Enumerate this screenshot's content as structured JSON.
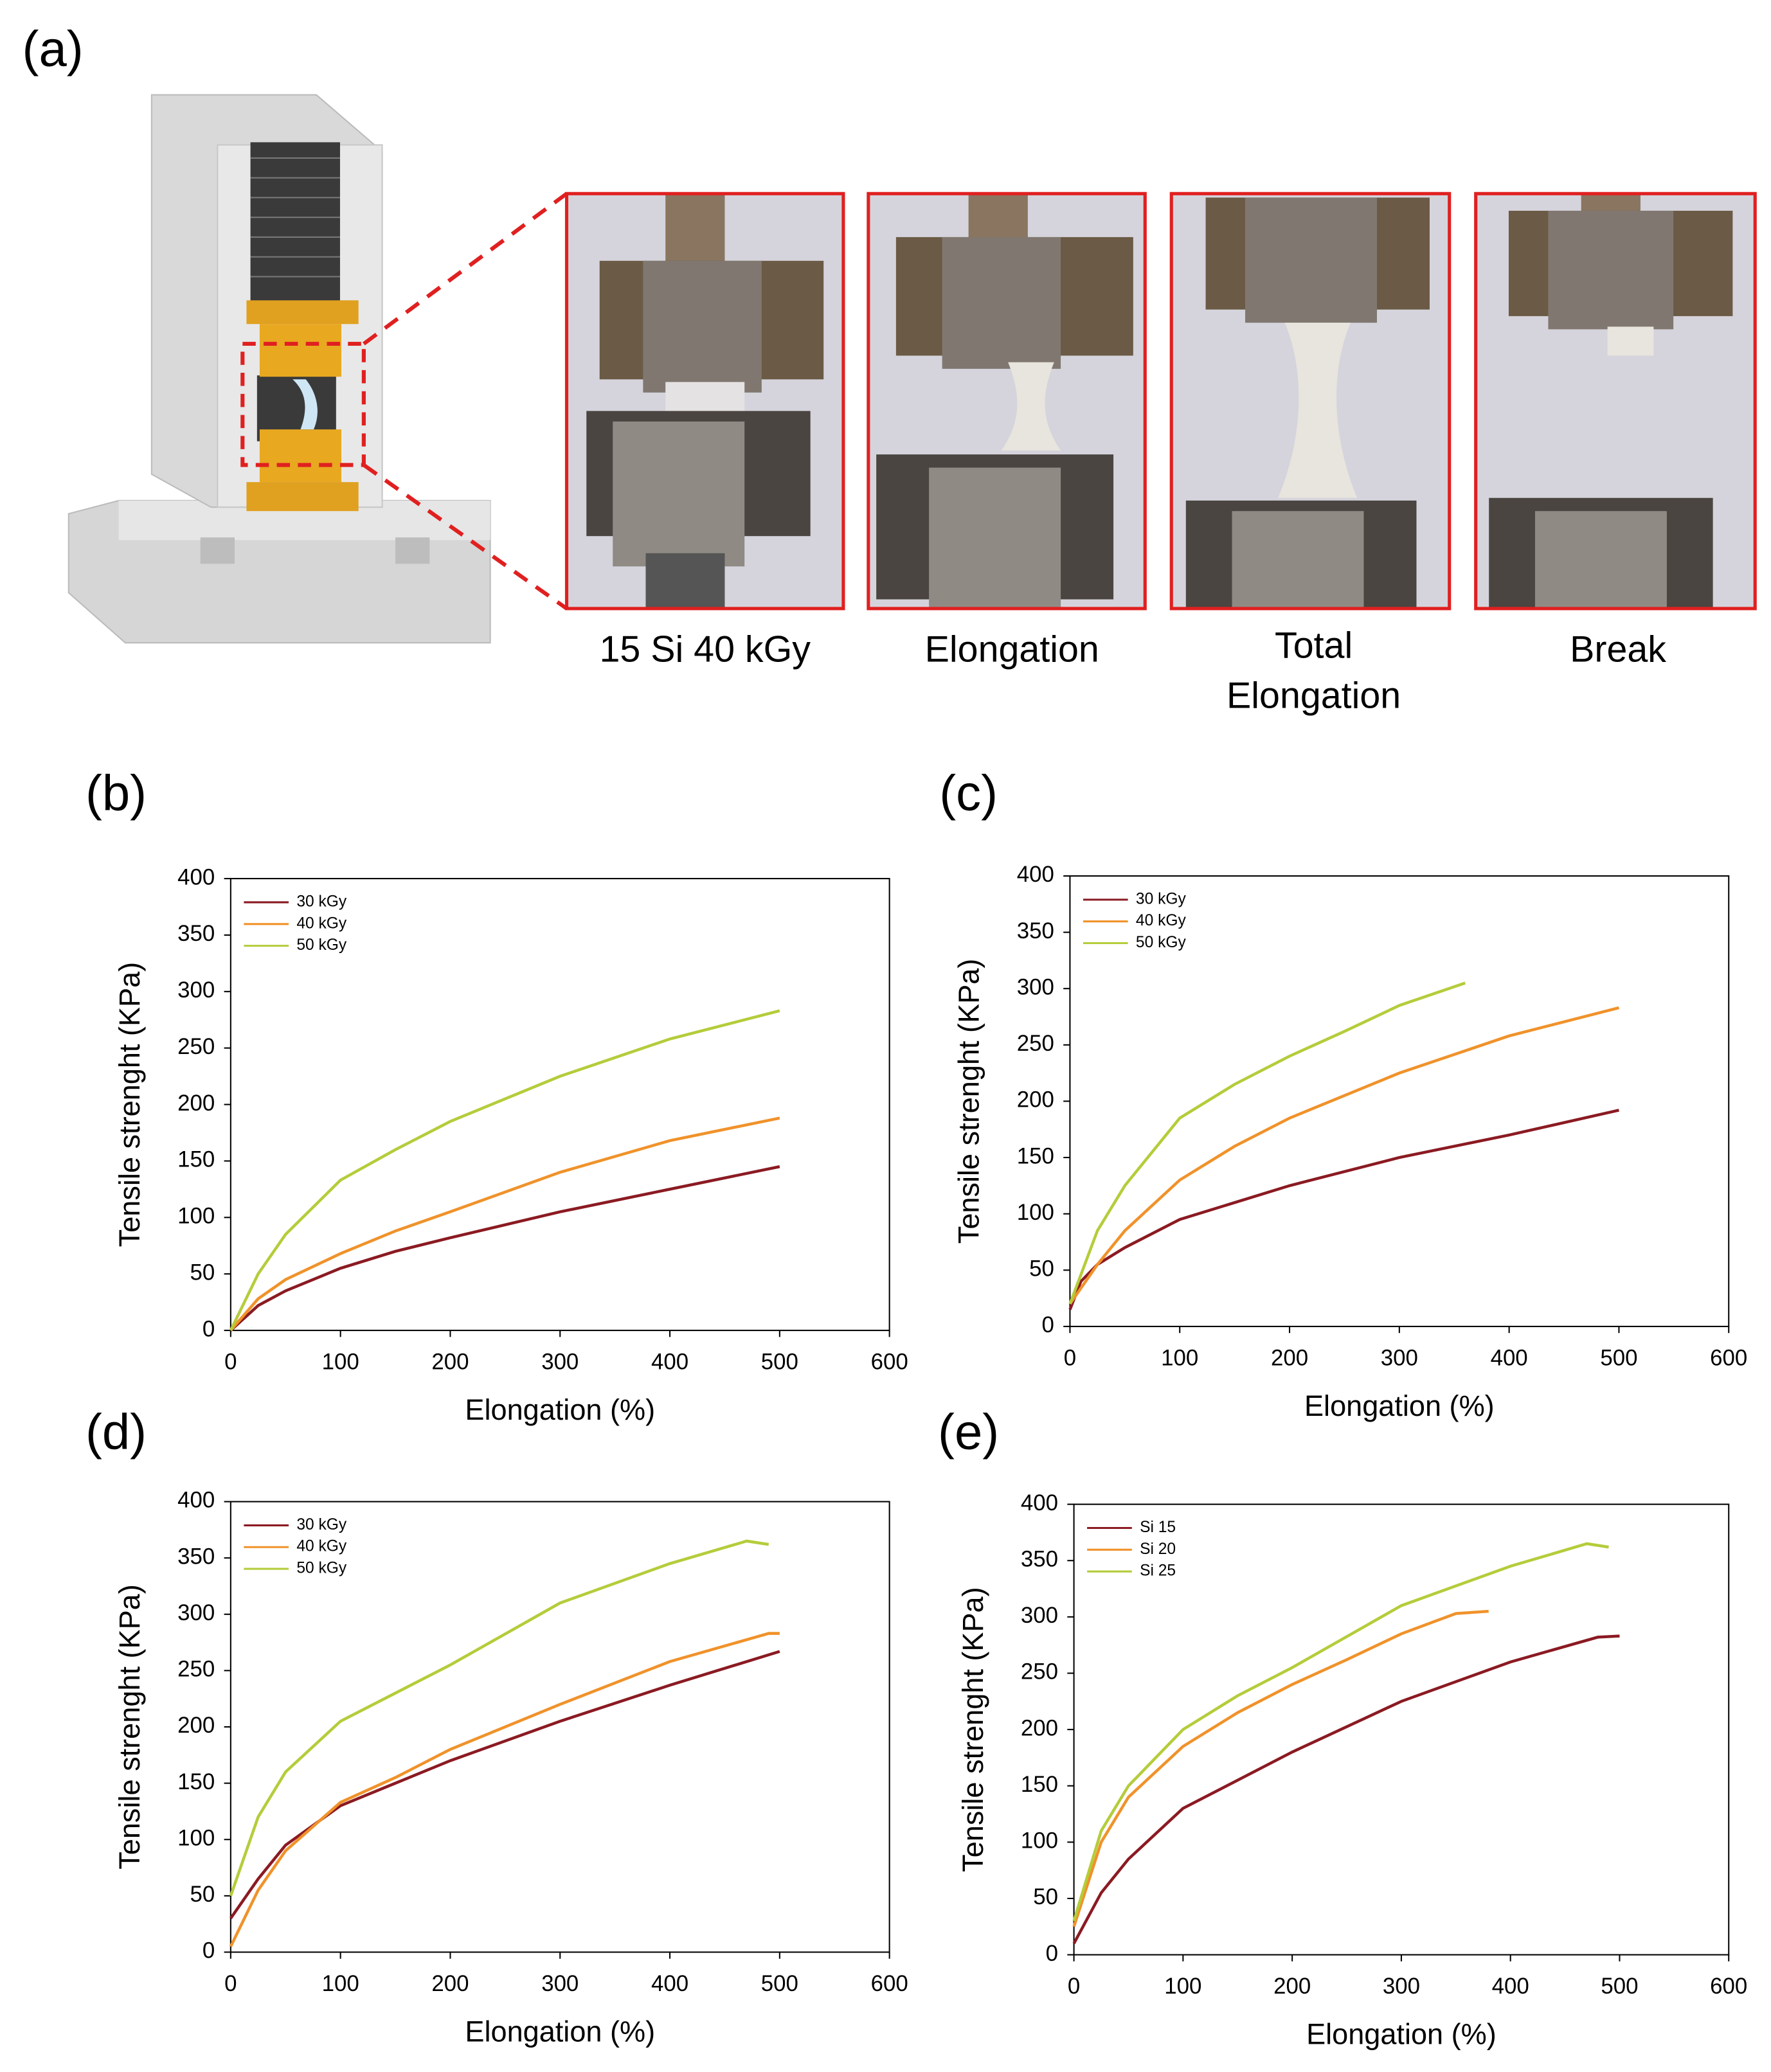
{
  "panel_labels": [
    "(a)",
    "(b)",
    "(c)",
    "(d)",
    "(e)"
  ],
  "photo_captions": [
    [
      "15 Si 40 kGy"
    ],
    [
      "Elongation"
    ],
    [
      "Total",
      "Elongation"
    ],
    [
      "Break"
    ]
  ],
  "chart_data": [
    {
      "type": "line",
      "xlabel": "Elongation (%)",
      "ylabel": "Tensile strenght (KPa)",
      "xlim": [
        0,
        600
      ],
      "xticks": [
        0,
        100,
        200,
        300,
        400,
        500,
        600
      ],
      "ylim": [
        0,
        400
      ],
      "yticks": [
        0,
        50,
        100,
        150,
        200,
        250,
        300,
        350,
        400
      ],
      "legend": "upper left",
      "series": [
        {
          "name": "30 kGy",
          "color": "#8b1a22",
          "x": [
            0,
            25,
            50,
            100,
            150,
            200,
            300,
            400,
            500
          ],
          "values": [
            0,
            22,
            35,
            55,
            70,
            82,
            105,
            125,
            145
          ]
        },
        {
          "name": "40 kGy",
          "color": "#f0922a",
          "x": [
            0,
            25,
            50,
            100,
            150,
            200,
            300,
            400,
            500
          ],
          "values": [
            0,
            28,
            45,
            68,
            88,
            105,
            140,
            168,
            188
          ]
        },
        {
          "name": "50 kGy",
          "color": "#b5cc3a",
          "x": [
            0,
            25,
            50,
            100,
            150,
            200,
            300,
            400,
            500
          ],
          "values": [
            0,
            50,
            85,
            133,
            160,
            185,
            225,
            258,
            283
          ]
        }
      ]
    },
    {
      "type": "line",
      "xlabel": "Elongation (%)",
      "ylabel": "Tensile strenght (KPa)",
      "xlim": [
        0,
        600
      ],
      "xticks": [
        0,
        100,
        200,
        300,
        400,
        500,
        600
      ],
      "ylim": [
        0,
        400
      ],
      "yticks": [
        0,
        50,
        100,
        150,
        200,
        250,
        300,
        350,
        400
      ],
      "legend": "upper left",
      "series": [
        {
          "name": "30 kGy",
          "color": "#8b1a22",
          "x": [
            0,
            10,
            25,
            50,
            100,
            150,
            200,
            300,
            400,
            500
          ],
          "values": [
            15,
            40,
            55,
            70,
            95,
            110,
            125,
            150,
            170,
            192
          ]
        },
        {
          "name": "40 kGy",
          "color": "#f0922a",
          "x": [
            0,
            25,
            50,
            100,
            150,
            200,
            300,
            400,
            500
          ],
          "values": [
            20,
            55,
            85,
            130,
            160,
            185,
            225,
            258,
            283
          ]
        },
        {
          "name": "50 kGy",
          "color": "#b5cc3a",
          "x": [
            0,
            25,
            50,
            100,
            150,
            200,
            250,
            300,
            360
          ],
          "values": [
            20,
            85,
            125,
            185,
            215,
            240,
            262,
            285,
            305
          ]
        }
      ]
    },
    {
      "type": "line",
      "xlabel": "Elongation (%)",
      "ylabel": "Tensile strenght (KPa)",
      "xlim": [
        0,
        600
      ],
      "xticks": [
        0,
        100,
        200,
        300,
        400,
        500,
        600
      ],
      "ylim": [
        0,
        400
      ],
      "yticks": [
        0,
        50,
        100,
        150,
        200,
        250,
        300,
        350,
        400
      ],
      "legend": "upper left",
      "series": [
        {
          "name": "30 kGy",
          "color": "#8b1a22",
          "x": [
            0,
            25,
            50,
            100,
            150,
            200,
            300,
            400,
            500
          ],
          "values": [
            30,
            65,
            95,
            130,
            150,
            170,
            205,
            237,
            267
          ]
        },
        {
          "name": "40 kGy",
          "color": "#f0922a",
          "x": [
            0,
            25,
            50,
            100,
            150,
            200,
            300,
            400,
            490,
            500
          ],
          "values": [
            5,
            55,
            90,
            133,
            155,
            180,
            220,
            258,
            283,
            283
          ]
        },
        {
          "name": "50 kGy",
          "color": "#b5cc3a",
          "x": [
            0,
            25,
            50,
            100,
            150,
            200,
            300,
            400,
            470,
            490
          ],
          "values": [
            50,
            120,
            160,
            205,
            230,
            255,
            310,
            345,
            365,
            362
          ]
        }
      ]
    },
    {
      "type": "line",
      "xlabel": "Elongation (%)",
      "ylabel": "Tensile strenght (KPa)",
      "xlim": [
        0,
        600
      ],
      "xticks": [
        0,
        100,
        200,
        300,
        400,
        500,
        600
      ],
      "ylim": [
        0,
        400
      ],
      "yticks": [
        0,
        50,
        100,
        150,
        200,
        250,
        300,
        350,
        400
      ],
      "legend": "upper left",
      "series": [
        {
          "name": "Si 15",
          "color": "#8b1a22",
          "x": [
            0,
            25,
            50,
            100,
            150,
            200,
            300,
            400,
            480,
            500
          ],
          "values": [
            10,
            55,
            85,
            130,
            155,
            180,
            225,
            260,
            282,
            283
          ]
        },
        {
          "name": "Si 20",
          "color": "#f0922a",
          "x": [
            0,
            25,
            50,
            100,
            150,
            200,
            250,
            300,
            350,
            380
          ],
          "values": [
            25,
            100,
            140,
            185,
            215,
            240,
            262,
            285,
            303,
            305
          ]
        },
        {
          "name": "Si 25",
          "color": "#b5cc3a",
          "x": [
            0,
            25,
            50,
            100,
            150,
            200,
            300,
            400,
            470,
            490
          ],
          "values": [
            30,
            110,
            150,
            200,
            230,
            255,
            310,
            345,
            365,
            362
          ]
        }
      ]
    }
  ]
}
